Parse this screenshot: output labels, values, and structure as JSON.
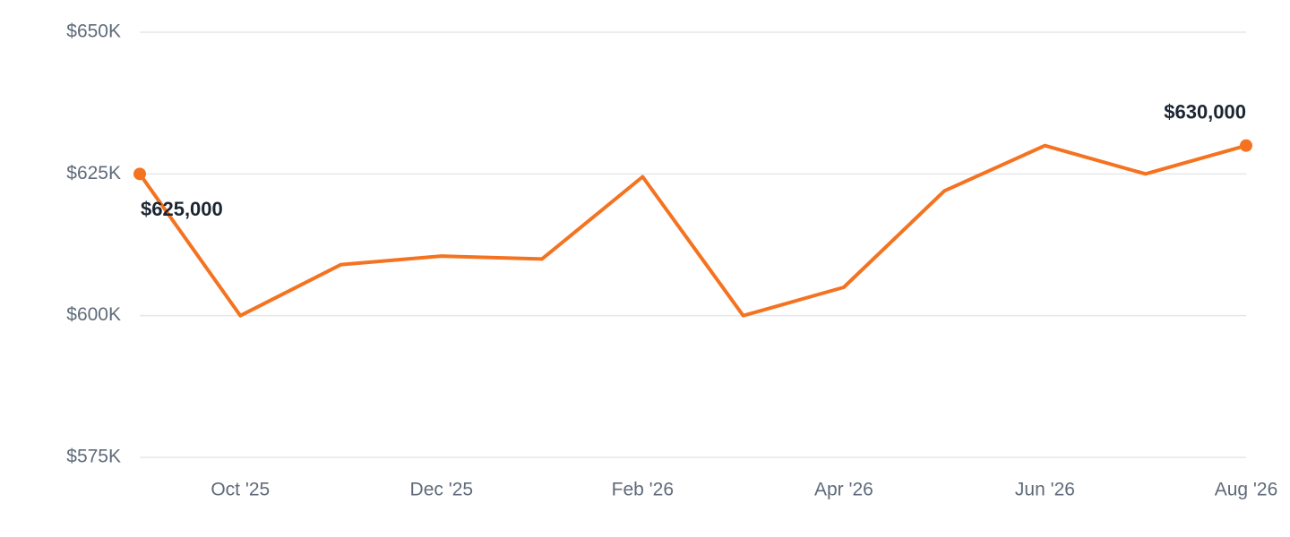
{
  "chart_data": {
    "type": "line",
    "categories": [
      null,
      "Oct '25",
      null,
      "Dec '25",
      null,
      "Feb '26",
      null,
      "Apr '26",
      null,
      "Jun '26",
      null,
      "Aug '26"
    ],
    "series": [
      {
        "color": "#f47321",
        "values": [
          625000,
          600000,
          609000,
          610500,
          610000,
          624500,
          600000,
          605000,
          622000,
          630000,
          625000,
          630000
        ],
        "value_labels": [
          "$625,000",
          null,
          null,
          null,
          null,
          null,
          null,
          null,
          null,
          null,
          null,
          "$630,000"
        ]
      }
    ],
    "ylim": [
      575000,
      650000
    ],
    "yticks": [
      {
        "value": 575000,
        "label": "$575K"
      },
      {
        "value": 600000,
        "label": "$600K"
      },
      {
        "value": 625000,
        "label": "$625K"
      },
      {
        "value": 650000,
        "label": "$650K"
      }
    ],
    "grid": true
  }
}
